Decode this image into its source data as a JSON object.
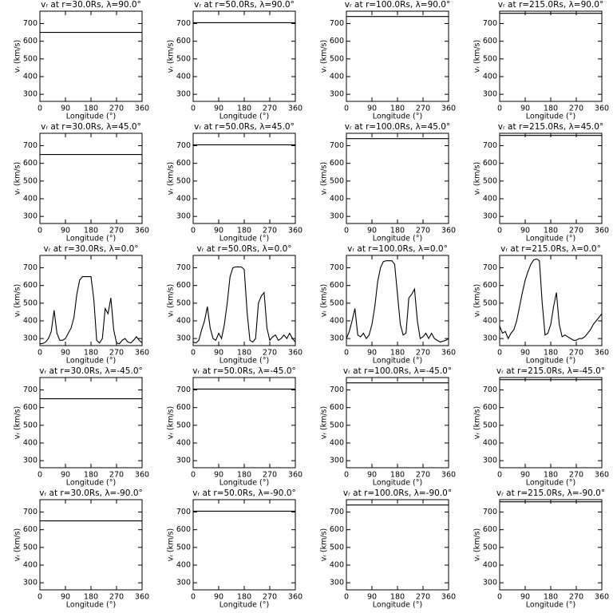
{
  "chart_data": [
    {
      "type": "line",
      "title": "vᵣ at r=30.0Rs, λ=90.0°",
      "x_label": "Longitude (°)",
      "y_label": "vᵣ (km/s)",
      "xlim": [
        0,
        360
      ],
      "ylim": [
        260,
        770
      ],
      "xticks": [
        0,
        90,
        180,
        270,
        360
      ],
      "yticks": [
        300,
        400,
        500,
        600,
        700
      ],
      "x": [
        0,
        360
      ],
      "series": [
        {
          "color": "#000000",
          "values": [
            650,
            650
          ]
        }
      ]
    },
    {
      "type": "line",
      "title": "vᵣ at r=50.0Rs, λ=90.0°",
      "x_label": "Longitude (°)",
      "y_label": "vᵣ (km/s)",
      "xlim": [
        0,
        360
      ],
      "ylim": [
        260,
        770
      ],
      "xticks": [
        0,
        90,
        180,
        270,
        360
      ],
      "yticks": [
        300,
        400,
        500,
        600,
        700
      ],
      "x": [
        0,
        360
      ],
      "series": [
        {
          "color": "#000000",
          "values": [
            705,
            705
          ]
        }
      ]
    },
    {
      "type": "line",
      "title": "vᵣ at r=100.0Rs, λ=90.0°",
      "x_label": "Longitude (°)",
      "y_label": "vᵣ (km/s)",
      "xlim": [
        0,
        360
      ],
      "ylim": [
        260,
        770
      ],
      "xticks": [
        0,
        90,
        180,
        270,
        360
      ],
      "yticks": [
        300,
        400,
        500,
        600,
        700
      ],
      "x": [
        0,
        360
      ],
      "series": [
        {
          "color": "#000000",
          "values": [
            740,
            740
          ]
        }
      ]
    },
    {
      "type": "line",
      "title": "vᵣ at r=215.0Rs, λ=90.0°",
      "x_label": "Longitude (°)",
      "y_label": "vᵣ (km/s)",
      "xlim": [
        0,
        360
      ],
      "ylim": [
        260,
        770
      ],
      "xticks": [
        0,
        90,
        180,
        270,
        360
      ],
      "yticks": [
        300,
        400,
        500,
        600,
        700
      ],
      "x": [
        0,
        360
      ],
      "series": [
        {
          "color": "#000000",
          "values": [
            758,
            758
          ]
        }
      ]
    },
    {
      "type": "line",
      "title": "vᵣ at r=30.0Rs, λ=45.0°",
      "x_label": "Longitude (°)",
      "y_label": "vᵣ (km/s)",
      "xlim": [
        0,
        360
      ],
      "ylim": [
        260,
        770
      ],
      "xticks": [
        0,
        90,
        180,
        270,
        360
      ],
      "yticks": [
        300,
        400,
        500,
        600,
        700
      ],
      "x": [
        0,
        360
      ],
      "series": [
        {
          "color": "#000000",
          "values": [
            650,
            650
          ]
        }
      ]
    },
    {
      "type": "line",
      "title": "vᵣ at r=50.0Rs, λ=45.0°",
      "x_label": "Longitude (°)",
      "y_label": "vᵣ (km/s)",
      "xlim": [
        0,
        360
      ],
      "ylim": [
        260,
        770
      ],
      "xticks": [
        0,
        90,
        180,
        270,
        360
      ],
      "yticks": [
        300,
        400,
        500,
        600,
        700
      ],
      "x": [
        0,
        360
      ],
      "series": [
        {
          "color": "#000000",
          "values": [
            705,
            705
          ]
        }
      ]
    },
    {
      "type": "line",
      "title": "vᵣ at r=100.0Rs, λ=45.0°",
      "x_label": "Longitude (°)",
      "y_label": "vᵣ (km/s)",
      "xlim": [
        0,
        360
      ],
      "ylim": [
        260,
        770
      ],
      "xticks": [
        0,
        90,
        180,
        270,
        360
      ],
      "yticks": [
        300,
        400,
        500,
        600,
        700
      ],
      "x": [
        0,
        360
      ],
      "series": [
        {
          "color": "#000000",
          "values": [
            740,
            740
          ]
        }
      ]
    },
    {
      "type": "line",
      "title": "vᵣ at r=215.0Rs, λ=45.0°",
      "x_label": "Longitude (°)",
      "y_label": "vᵣ (km/s)",
      "xlim": [
        0,
        360
      ],
      "ylim": [
        260,
        770
      ],
      "xticks": [
        0,
        90,
        180,
        270,
        360
      ],
      "yticks": [
        300,
        400,
        500,
        600,
        700
      ],
      "x": [
        0,
        360
      ],
      "series": [
        {
          "color": "#000000",
          "values": [
            758,
            758
          ]
        }
      ]
    },
    {
      "type": "line",
      "title": "vᵣ at r=30.0Rs, λ=0.0°",
      "x_label": "Longitude (°)",
      "y_label": "vᵣ (km/s)",
      "xlim": [
        0,
        360
      ],
      "ylim": [
        260,
        770
      ],
      "xticks": [
        0,
        90,
        180,
        270,
        360
      ],
      "yticks": [
        300,
        400,
        500,
        600,
        700
      ],
      "x": [
        0,
        10,
        20,
        30,
        40,
        50,
        60,
        70,
        80,
        90,
        100,
        110,
        120,
        130,
        140,
        150,
        160,
        170,
        180,
        190,
        200,
        210,
        220,
        230,
        240,
        250,
        260,
        270,
        280,
        290,
        300,
        310,
        320,
        330,
        340,
        350,
        360
      ],
      "series": [
        {
          "color": "#000000",
          "values": [
            270,
            272,
            280,
            300,
            340,
            460,
            330,
            290,
            290,
            300,
            330,
            360,
            420,
            550,
            630,
            650,
            650,
            650,
            650,
            520,
            290,
            275,
            300,
            470,
            440,
            530,
            350,
            275,
            270,
            290,
            300,
            280,
            275,
            290,
            310,
            290,
            275
          ]
        }
      ]
    },
    {
      "type": "line",
      "title": "vᵣ at r=50.0Rs, λ=0.0°",
      "x_label": "Longitude (°)",
      "y_label": "vᵣ (km/s)",
      "xlim": [
        0,
        360
      ],
      "ylim": [
        260,
        770
      ],
      "xticks": [
        0,
        90,
        180,
        270,
        360
      ],
      "yticks": [
        300,
        400,
        500,
        600,
        700
      ],
      "x": [
        0,
        10,
        20,
        30,
        40,
        50,
        60,
        70,
        80,
        90,
        100,
        110,
        120,
        130,
        140,
        150,
        160,
        170,
        180,
        190,
        200,
        210,
        220,
        230,
        240,
        250,
        260,
        270,
        280,
        290,
        300,
        310,
        320,
        330,
        340,
        350,
        360
      ],
      "series": [
        {
          "color": "#000000",
          "values": [
            280,
            275,
            290,
            350,
            400,
            480,
            360,
            300,
            290,
            330,
            300,
            380,
            500,
            650,
            700,
            705,
            705,
            705,
            690,
            450,
            290,
            280,
            300,
            500,
            540,
            560,
            360,
            290,
            310,
            320,
            290,
            300,
            320,
            300,
            330,
            300,
            280
          ]
        }
      ]
    },
    {
      "type": "line",
      "title": "vᵣ at r=100.0Rs, λ=0.0°",
      "x_label": "Longitude (°)",
      "y_label": "vᵣ (km/s)",
      "xlim": [
        0,
        360
      ],
      "ylim": [
        260,
        770
      ],
      "xticks": [
        0,
        90,
        180,
        270,
        360
      ],
      "yticks": [
        300,
        400,
        500,
        600,
        700
      ],
      "x": [
        0,
        10,
        20,
        30,
        40,
        50,
        60,
        70,
        80,
        90,
        100,
        110,
        120,
        130,
        140,
        150,
        160,
        170,
        180,
        190,
        200,
        210,
        220,
        230,
        240,
        250,
        260,
        270,
        280,
        290,
        300,
        310,
        320,
        330,
        340,
        350,
        360
      ],
      "series": [
        {
          "color": "#000000",
          "values": [
            300,
            340,
            400,
            470,
            320,
            310,
            330,
            300,
            320,
            380,
            480,
            620,
            700,
            735,
            740,
            740,
            740,
            720,
            550,
            380,
            320,
            330,
            530,
            550,
            580,
            400,
            300,
            310,
            330,
            300,
            330,
            300,
            290,
            280,
            285,
            290,
            300
          ]
        }
      ]
    },
    {
      "type": "line",
      "title": "vᵣ at r=215.0Rs, λ=0.0°",
      "x_label": "Longitude (°)",
      "y_label": "vᵣ (km/s)",
      "xlim": [
        0,
        360
      ],
      "ylim": [
        260,
        770
      ],
      "xticks": [
        0,
        90,
        180,
        270,
        360
      ],
      "yticks": [
        300,
        400,
        500,
        600,
        700
      ],
      "x": [
        0,
        10,
        20,
        30,
        40,
        50,
        60,
        70,
        80,
        90,
        100,
        110,
        120,
        130,
        140,
        150,
        160,
        170,
        180,
        190,
        200,
        210,
        220,
        230,
        240,
        250,
        260,
        270,
        280,
        290,
        300,
        310,
        320,
        330,
        340,
        350,
        360
      ],
      "series": [
        {
          "color": "#000000",
          "values": [
            370,
            330,
            340,
            300,
            330,
            350,
            400,
            480,
            560,
            630,
            680,
            720,
            745,
            750,
            740,
            500,
            320,
            330,
            380,
            480,
            560,
            380,
            310,
            320,
            310,
            300,
            290,
            290,
            300,
            300,
            310,
            330,
            350,
            380,
            400,
            420,
            440
          ]
        }
      ]
    },
    {
      "type": "line",
      "title": "vᵣ at r=30.0Rs, λ=-45.0°",
      "x_label": "Longitude (°)",
      "y_label": "vᵣ (km/s)",
      "xlim": [
        0,
        360
      ],
      "ylim": [
        260,
        770
      ],
      "xticks": [
        0,
        90,
        180,
        270,
        360
      ],
      "yticks": [
        300,
        400,
        500,
        600,
        700
      ],
      "x": [
        0,
        360
      ],
      "series": [
        {
          "color": "#000000",
          "values": [
            650,
            650
          ]
        }
      ]
    },
    {
      "type": "line",
      "title": "vᵣ at r=50.0Rs, λ=-45.0°",
      "x_label": "Longitude (°)",
      "y_label": "vᵣ (km/s)",
      "xlim": [
        0,
        360
      ],
      "ylim": [
        260,
        770
      ],
      "xticks": [
        0,
        90,
        180,
        270,
        360
      ],
      "yticks": [
        300,
        400,
        500,
        600,
        700
      ],
      "x": [
        0,
        360
      ],
      "series": [
        {
          "color": "#000000",
          "values": [
            705,
            705
          ]
        }
      ]
    },
    {
      "type": "line",
      "title": "vᵣ at r=100.0Rs, λ=-45.0°",
      "x_label": "Longitude (°)",
      "y_label": "vᵣ (km/s)",
      "xlim": [
        0,
        360
      ],
      "ylim": [
        260,
        770
      ],
      "xticks": [
        0,
        90,
        180,
        270,
        360
      ],
      "yticks": [
        300,
        400,
        500,
        600,
        700
      ],
      "x": [
        0,
        360
      ],
      "series": [
        {
          "color": "#000000",
          "values": [
            740,
            740
          ]
        }
      ]
    },
    {
      "type": "line",
      "title": "vᵣ at r=215.0Rs, λ=-45.0°",
      "x_label": "Longitude (°)",
      "y_label": "vᵣ (km/s)",
      "xlim": [
        0,
        360
      ],
      "ylim": [
        260,
        770
      ],
      "xticks": [
        0,
        90,
        180,
        270,
        360
      ],
      "yticks": [
        300,
        400,
        500,
        600,
        700
      ],
      "x": [
        0,
        360
      ],
      "series": [
        {
          "color": "#000000",
          "values": [
            758,
            758
          ]
        }
      ]
    },
    {
      "type": "line",
      "title": "vᵣ at r=30.0Rs, λ=-90.0°",
      "x_label": "Longitude (°)",
      "y_label": "vᵣ (km/s)",
      "xlim": [
        0,
        360
      ],
      "ylim": [
        260,
        770
      ],
      "xticks": [
        0,
        90,
        180,
        270,
        360
      ],
      "yticks": [
        300,
        400,
        500,
        600,
        700
      ],
      "x": [
        0,
        360
      ],
      "series": [
        {
          "color": "#000000",
          "values": [
            650,
            650
          ]
        }
      ]
    },
    {
      "type": "line",
      "title": "vᵣ at r=50.0Rs, λ=-90.0°",
      "x_label": "Longitude (°)",
      "y_label": "vᵣ (km/s)",
      "xlim": [
        0,
        360
      ],
      "ylim": [
        260,
        770
      ],
      "xticks": [
        0,
        90,
        180,
        270,
        360
      ],
      "yticks": [
        300,
        400,
        500,
        600,
        700
      ],
      "x": [
        0,
        360
      ],
      "series": [
        {
          "color": "#000000",
          "values": [
            705,
            705
          ]
        }
      ]
    },
    {
      "type": "line",
      "title": "vᵣ at r=100.0Rs, λ=-90.0°",
      "x_label": "Longitude (°)",
      "y_label": "vᵣ (km/s)",
      "xlim": [
        0,
        360
      ],
      "ylim": [
        260,
        770
      ],
      "xticks": [
        0,
        90,
        180,
        270,
        360
      ],
      "yticks": [
        300,
        400,
        500,
        600,
        700
      ],
      "x": [
        0,
        360
      ],
      "series": [
        {
          "color": "#000000",
          "values": [
            740,
            740
          ]
        }
      ]
    },
    {
      "type": "line",
      "title": "vᵣ at r=215.0Rs, λ=-90.0°",
      "x_label": "Longitude (°)",
      "y_label": "vᵣ (km/s)",
      "xlim": [
        0,
        360
      ],
      "ylim": [
        260,
        770
      ],
      "xticks": [
        0,
        90,
        180,
        270,
        360
      ],
      "yticks": [
        300,
        400,
        500,
        600,
        700
      ],
      "x": [
        0,
        360
      ],
      "series": [
        {
          "color": "#000000",
          "values": [
            758,
            758
          ]
        }
      ]
    }
  ]
}
